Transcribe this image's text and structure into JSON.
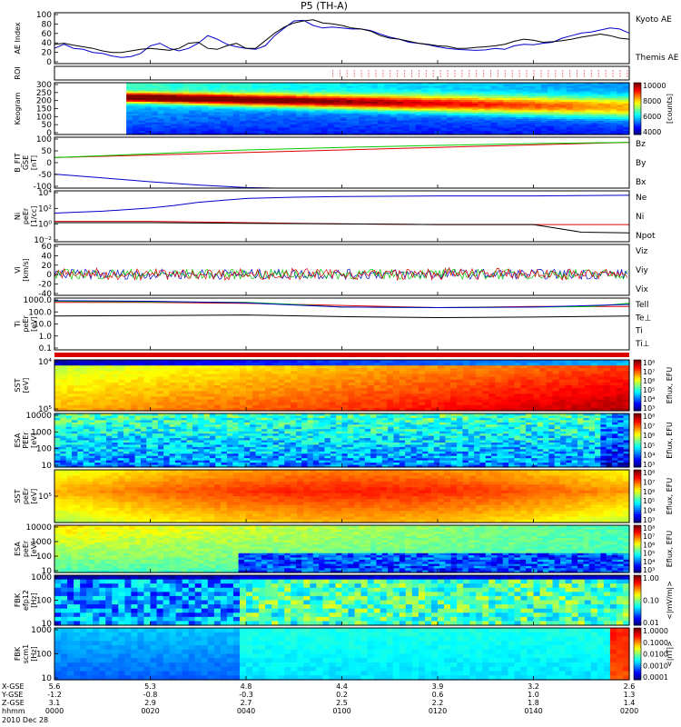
{
  "title": "P5 (TH-A)",
  "colors": {
    "blue": "#0000cc",
    "red": "#dd0000",
    "green": "#00cc00",
    "black": "#000000",
    "kyoto": "#0000cc",
    "themis": "#000000"
  },
  "chart_data": [
    {
      "id": "ae",
      "type": "line",
      "ylabel": "AE Index",
      "yticks": [
        "0",
        "20",
        "40",
        "60",
        "80",
        "100"
      ],
      "ylim": [
        0,
        100
      ],
      "series": [
        {
          "name": "Kyoto AE",
          "color": "#0000cc",
          "x": [
            0,
            2,
            4,
            6,
            8,
            10,
            12,
            14,
            16,
            18,
            20,
            22,
            24,
            26,
            28,
            30,
            32,
            34,
            36,
            38,
            40,
            42,
            44,
            46,
            48,
            50,
            52,
            54,
            56,
            58,
            60,
            62,
            64,
            66,
            68,
            70,
            72,
            74,
            76,
            78,
            80,
            82,
            84,
            86,
            88,
            90,
            92,
            94,
            96,
            98,
            100,
            102,
            104,
            106,
            108,
            110,
            112,
            114,
            116,
            118,
            120
          ],
          "y": [
            30,
            38,
            30,
            28,
            22,
            20,
            15,
            12,
            14,
            20,
            35,
            40,
            30,
            25,
            30,
            40,
            55,
            48,
            38,
            33,
            30,
            28,
            35,
            55,
            70,
            84,
            85,
            75,
            70,
            72,
            70,
            68,
            68,
            65,
            58,
            52,
            48,
            42,
            40,
            37,
            33,
            30,
            28,
            27,
            26,
            27,
            30,
            28,
            35,
            38,
            37,
            40,
            42,
            50,
            55,
            60,
            62,
            66,
            70,
            68,
            60
          ]
        },
        {
          "name": "Themis AE",
          "color": "#000000",
          "x": [
            0,
            2,
            4,
            6,
            8,
            10,
            12,
            14,
            16,
            18,
            20,
            22,
            24,
            26,
            28,
            30,
            32,
            34,
            36,
            38,
            40,
            42,
            44,
            46,
            48,
            50,
            52,
            54,
            56,
            58,
            60,
            62,
            64,
            66,
            68,
            70,
            72,
            74,
            76,
            78,
            80,
            82,
            84,
            86,
            88,
            90,
            92,
            94,
            96,
            98,
            100,
            102,
            104,
            106,
            108,
            110,
            112,
            114,
            116,
            118,
            120
          ],
          "y": [
            38,
            40,
            36,
            33,
            30,
            25,
            22,
            22,
            25,
            28,
            30,
            28,
            26,
            30,
            40,
            42,
            30,
            28,
            35,
            40,
            30,
            30,
            45,
            60,
            72,
            80,
            84,
            86,
            80,
            78,
            75,
            70,
            68,
            64,
            55,
            50,
            48,
            44,
            40,
            38,
            35,
            34,
            30,
            30,
            32,
            33,
            35,
            38,
            44,
            48,
            46,
            42,
            43,
            45,
            48,
            52,
            55,
            58,
            55,
            50,
            48
          ]
        }
      ],
      "legend": [
        "Kyoto AE",
        "Themis AE"
      ]
    },
    {
      "id": "roi",
      "type": "scatter",
      "ylabel": "ROI",
      "yticks": [],
      "series": [
        {
          "name": "ROI",
          "color": "#dd0000",
          "x_start": 58,
          "x_end": 120
        }
      ]
    },
    {
      "id": "keogram",
      "type": "heatmap",
      "ylabel": "Keogram",
      "yticks": [
        "0",
        "50",
        "100",
        "150",
        "200",
        "250",
        "300"
      ],
      "ylim": [
        0,
        300
      ],
      "data_start_x": 15,
      "colorbar": {
        "ticks": [
          "4000",
          "6000",
          "8000",
          "10000"
        ],
        "label": "[counts]"
      }
    },
    {
      "id": "bfield",
      "type": "line",
      "ylabel": "B_FIT\nGSE\n[nT]",
      "yticks": [
        "-100",
        "-50",
        "0",
        "50",
        "100"
      ],
      "ylim": [
        -100,
        100
      ],
      "series": [
        {
          "name": "Bz",
          "color": "#dd0000",
          "x": [
            0,
            120
          ],
          "y": [
            20,
            80
          ]
        },
        {
          "name": "By",
          "color": "#00cc00",
          "x": [
            0,
            20,
            40,
            60,
            80,
            100,
            120
          ],
          "y": [
            20,
            35,
            50,
            60,
            68,
            75,
            80
          ]
        },
        {
          "name": "Bx",
          "color": "#0000cc",
          "x": [
            0,
            10,
            20,
            30,
            40,
            46,
            50
          ],
          "y": [
            -45,
            -60,
            -75,
            -88,
            -98,
            -100,
            -100
          ]
        }
      ],
      "legend": [
        "Bz",
        "By",
        "Bx"
      ]
    },
    {
      "id": "density",
      "type": "line",
      "ylabel": "Ni\npeEr\n[1/cc]",
      "yticks": [
        "10⁻²",
        "10⁰",
        "10²",
        "10⁴"
      ],
      "ylim": [
        -3,
        5
      ],
      "series": [
        {
          "name": "Ne",
          "color": "#dd0000",
          "x": [
            0,
            20,
            40,
            60,
            80,
            100,
            120
          ],
          "y": [
            0.2,
            0.2,
            0.0,
            -0.2,
            -0.3,
            -0.3,
            -0.3
          ]
        },
        {
          "name": "Ni",
          "color": "#000000",
          "x": [
            0,
            20,
            40,
            60,
            80,
            100,
            110,
            120
          ],
          "y": [
            0,
            0,
            -0.1,
            -0.2,
            -0.3,
            -0.3,
            -1.5,
            -1.6
          ]
        },
        {
          "name": "Npot",
          "color": "#0000cc",
          "x": [
            0,
            10,
            20,
            25,
            30,
            35,
            40,
            50,
            60,
            80,
            100,
            120
          ],
          "y": [
            1.5,
            1.8,
            2.3,
            2.7,
            3.2,
            3.5,
            3.8,
            4.0,
            4.1,
            4.2,
            4.2,
            4.3
          ]
        }
      ],
      "legend": [
        "Ne",
        "Ni",
        "Npot"
      ]
    },
    {
      "id": "velocity",
      "type": "line",
      "ylabel": "Vi\n[km/s]",
      "yticks": [
        "-40",
        "-20",
        "0",
        "20",
        "40",
        "60"
      ],
      "ylim": [
        -50,
        70
      ],
      "series": [
        {
          "name": "Vix",
          "color": "#0000cc",
          "mean": 0,
          "amp": 12
        },
        {
          "name": "Viy",
          "color": "#00cc00",
          "mean": 0,
          "amp": 12
        },
        {
          "name": "Viz",
          "color": "#dd0000",
          "mean": 0,
          "amp": 12
        }
      ],
      "legend": [
        "Viz",
        "Viy",
        "Vix"
      ]
    },
    {
      "id": "temperature",
      "type": "line",
      "ylabel": "Ti\npeEr\n[eV]",
      "yticks": [
        "0.1",
        "1.0",
        "10.0",
        "100.0",
        "1000.0"
      ],
      "ylim": [
        -1.3,
        3.6
      ],
      "series": [
        {
          "name": "Tell",
          "color": "#000000",
          "x": [
            0,
            20,
            40,
            60,
            80,
            100,
            120
          ],
          "y": [
            1.9,
            1.95,
            2.0,
            1.85,
            1.75,
            1.8,
            1.9
          ]
        },
        {
          "name": "Te⊥",
          "color": "#dd0000",
          "x": [
            0,
            20,
            40,
            60,
            80,
            100,
            120
          ],
          "y": [
            3.2,
            3.2,
            3.1,
            2.9,
            2.7,
            2.8,
            2.8
          ]
        },
        {
          "name": "Ti",
          "color": "#00cc00",
          "x": [
            0,
            20,
            40,
            50,
            60,
            80,
            100,
            112,
            120
          ],
          "y": [
            3.3,
            3.25,
            3.2,
            3.0,
            2.75,
            2.7,
            2.75,
            2.8,
            3.1
          ]
        },
        {
          "name": "Ti⊥",
          "color": "#0000cc",
          "x": [
            0,
            20,
            40,
            50,
            60,
            80,
            100,
            120
          ],
          "y": [
            3.35,
            3.3,
            3.15,
            2.95,
            2.75,
            2.7,
            2.75,
            3.0
          ]
        }
      ],
      "legend": [
        "Tell",
        "Te⊥",
        "Ti",
        "Ti⊥"
      ]
    },
    {
      "id": "sst_e",
      "type": "heatmap",
      "ylabel": "SST\n[eV]",
      "yticks": [
        "10⁵",
        "10⁴"
      ],
      "colorbar": {
        "ticks": [
          "10³",
          "10⁴",
          "10⁵",
          "10⁶",
          "10⁷",
          "10⁸"
        ],
        "label": "Eflux, EFU"
      }
    },
    {
      "id": "esa_e",
      "type": "heatmap",
      "ylabel": "ESA\nPEEr\n[eV]",
      "yticks": [
        "10",
        "100",
        "1000",
        "10000"
      ],
      "colorbar": {
        "ticks": [
          "10³",
          "10⁴",
          "10⁵",
          "10⁶",
          "10⁷",
          "10⁸"
        ],
        "label": "Eflux, EFU"
      }
    },
    {
      "id": "sst_i",
      "type": "heatmap",
      "ylabel": "SST\npeEr\n[eV]",
      "yticks": [
        "10⁵"
      ],
      "colorbar": {
        "ticks": [
          "10³",
          "10⁴",
          "10⁵",
          "10⁶",
          "10⁷",
          "10⁸"
        ],
        "label": "Eflux, EFU"
      }
    },
    {
      "id": "esa_i",
      "type": "heatmap",
      "ylabel": "ESA\npeEr\n[eV]",
      "yticks": [
        "10",
        "100",
        "1000",
        "10000"
      ],
      "colorbar": {
        "ticks": [
          "10³",
          "10⁴",
          "10⁵",
          "10⁶",
          "10⁷",
          "10⁸"
        ],
        "label": "Eflux, EFU"
      }
    },
    {
      "id": "fbk_e",
      "type": "heatmap",
      "ylabel": "FBK\nefp12\n[Hz]",
      "yticks": [
        "10",
        "100",
        "1000"
      ],
      "colorbar": {
        "ticks": [
          "0.01",
          "0.10",
          "1.00"
        ],
        "label": "<|mV/m|>"
      }
    },
    {
      "id": "fbk_b",
      "type": "heatmap",
      "ylabel": "FBK\nscm1\n[Hz]",
      "yticks": [
        "10",
        "100",
        "1000"
      ],
      "colorbar": {
        "ticks": [
          "0.0001",
          "0.0010",
          "0.0100",
          "0.1000",
          "1.0000"
        ],
        "label": "<|nT|>"
      }
    }
  ],
  "xaxis": {
    "rows": [
      {
        "label": "X-GSE",
        "values": [
          "5.6",
          "5.3",
          "4.8",
          "4.4",
          "3.9",
          "3.2",
          "2.6"
        ]
      },
      {
        "label": "Y-GSE",
        "values": [
          "-1.2",
          "-0.8",
          "-0.3",
          "0.2",
          "0.6",
          "1.0",
          "1.3"
        ]
      },
      {
        "label": "Z-GSE",
        "values": [
          "3.1",
          "2.9",
          "2.7",
          "2.5",
          "2.2",
          "1.8",
          "1.4"
        ]
      },
      {
        "label": "hhmm",
        "values": [
          "0000",
          "0020",
          "0040",
          "0100",
          "0120",
          "0140",
          "0200"
        ]
      }
    ],
    "date": "2010 Dec 28"
  }
}
